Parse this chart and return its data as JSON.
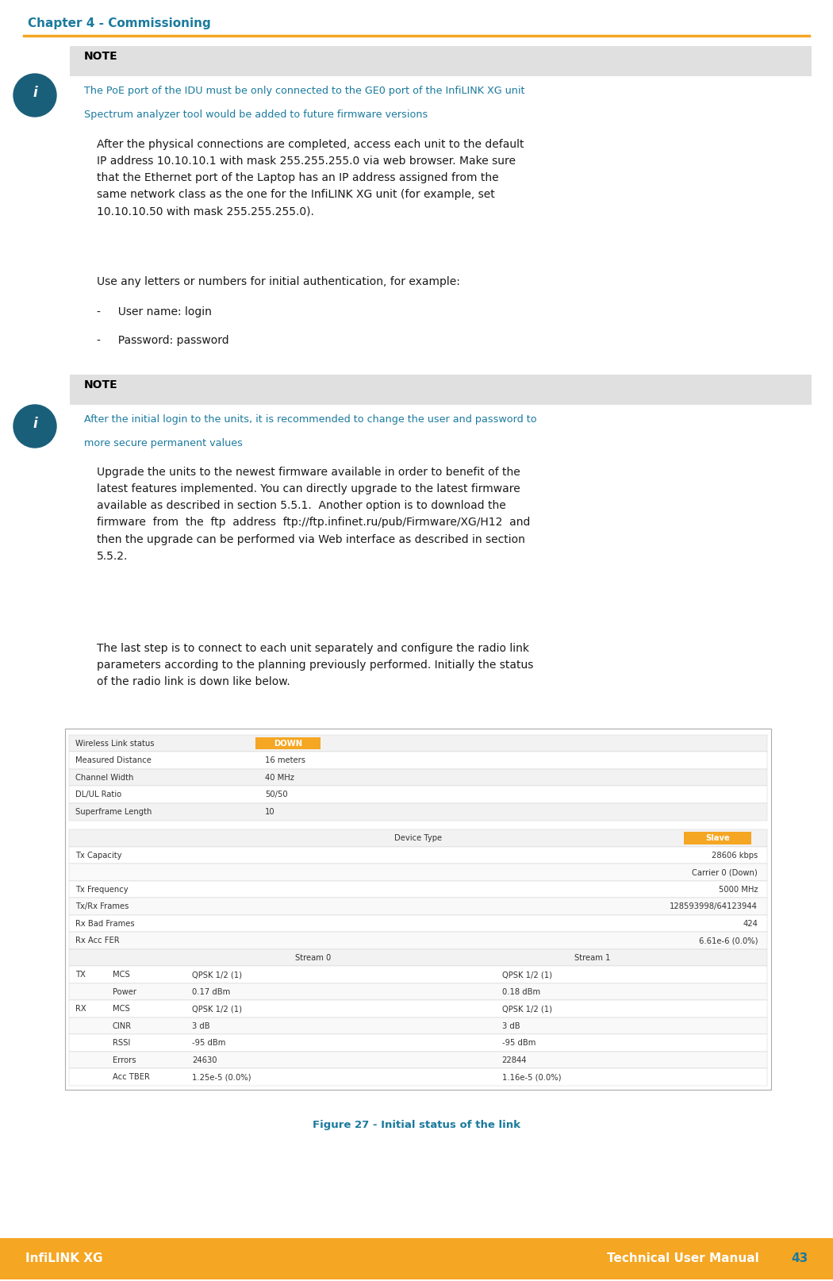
{
  "header_text": "Chapter 4 - Commissioning",
  "header_color": "#1a7a9e",
  "header_line_color": "#f5a623",
  "note_bg_color": "#e0e0e0",
  "note_title": "NOTE",
  "note1_lines": [
    "The PoE port of the IDU must be only connected to the GE0 port of the InfiLINK XG unit",
    "Spectrum analyzer tool would be added to future firmware versions"
  ],
  "note1_text_color": "#1a7a9e",
  "body_text_color": "#1a1a1a",
  "body_para1": "After the physical connections are completed, access each unit to the default\nIP address 10.10.10.1 with mask 255.255.255.0 via web browser. Make sure\nthat the Ethernet port of the Laptop has an IP address assigned from the\nsame network class as the one for the InfiLINK XG unit (for example, set\n10.10.10.50 with mask 255.255.255.0).",
  "body_para2": "Use any letters or numbers for initial authentication, for example:",
  "bullet1": "-     User name: login",
  "bullet2": "-     Password: password",
  "note2_lines": [
    "After the initial login to the units, it is recommended to change the user and password to",
    "more secure permanent values"
  ],
  "body_para3": "Upgrade the units to the newest firmware available in order to benefit of the\nlatest features implemented. You can directly upgrade to the latest firmware\navailable as described in section 5.5.1.  Another option is to download the\nfirmware  from  the  ftp  address  ftp://ftp.infinet.ru/pub/Firmware/XG/H12  and\nthen the upgrade can be performed via Web interface as described in section\n5.5.2.",
  "body_para4": "The last step is to connect to each unit separately and configure the radio link\nparameters according to the planning previously performed. Initially the status\nof the radio link is down like below.",
  "fig_caption": "Figure 27 - Initial status of the link",
  "footer_bg_color": "#f5a623",
  "footer_left": "InfiLINK XG",
  "footer_right": "Technical User Manual",
  "footer_page": "43",
  "footer_text_color": "#ffffff",
  "footer_page_color": "#1a7a9e",
  "table1_rows": [
    [
      "Wireless Link status",
      "DOWN"
    ],
    [
      "Measured Distance",
      "16 meters"
    ],
    [
      "Channel Width",
      "40 MHz"
    ],
    [
      "DL/UL Ratio",
      "50/50"
    ],
    [
      "Superframe Length",
      "10"
    ]
  ],
  "table2_rows": [
    [
      "Tx Capacity",
      "28606 kbps",
      ""
    ],
    [
      "",
      "Carrier 0 (Down)",
      ""
    ],
    [
      "Tx Frequency",
      "5000 MHz",
      ""
    ],
    [
      "Tx/Rx Frames",
      "128593998/64123944",
      ""
    ],
    [
      "Rx Bad Frames",
      "424",
      ""
    ],
    [
      "Rx Acc FER",
      "6.61e-6 (0.0%)",
      ""
    ]
  ],
  "table3_rows": [
    [
      "TX",
      "MCS",
      "QPSK 1/2 (1)",
      "QPSK 1/2 (1)"
    ],
    [
      "",
      "Power",
      "0.17 dBm",
      "0.18 dBm"
    ],
    [
      "RX",
      "MCS",
      "QPSK 1/2 (1)",
      "QPSK 1/2 (1)"
    ],
    [
      "",
      "CINR",
      "3 dB",
      "3 dB"
    ],
    [
      "",
      "RSSI",
      "-95 dBm",
      "-95 dBm"
    ],
    [
      "",
      "Errors",
      "24630",
      "22844"
    ],
    [
      "",
      "Acc TBER",
      "1.25e-5 (0.0%)",
      "1.16e-5 (0.0%)"
    ]
  ]
}
